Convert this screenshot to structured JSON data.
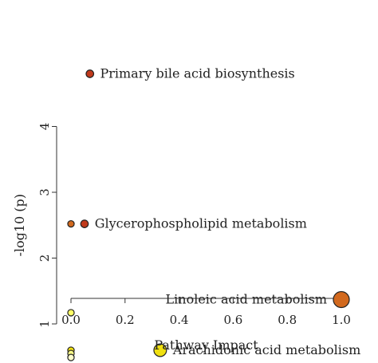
{
  "chart_data": {
    "type": "scatter",
    "title": "",
    "xlabel": "Pathway Impact",
    "ylabel": "-log10 (p)",
    "xlim": [
      0.0,
      1.0
    ],
    "ylim": [
      0.45,
      4.3
    ],
    "xticks": [
      0.0,
      0.2,
      0.4,
      0.6,
      0.8,
      1.0
    ],
    "xtick_labels": [
      "0.0",
      "0.2",
      "0.4",
      "0.6",
      "0.8",
      "1.0"
    ],
    "yticks": [
      1,
      2,
      3,
      4
    ],
    "ytick_labels": [
      "1",
      "2",
      "3",
      "4"
    ],
    "grid": false,
    "legend": "none",
    "points": [
      {
        "x": 0.07,
        "y": 4.8,
        "size": 0.25,
        "color": "#c0391b",
        "label": "Primary bile acid biosynthesis",
        "label_side": "right"
      },
      {
        "x": 0.05,
        "y": 2.52,
        "size": 0.25,
        "color": "#c0391b",
        "label": "Glycerophospholipid metabolism",
        "label_side": "right"
      },
      {
        "x": 0.0,
        "y": 2.52,
        "size": 0.15,
        "color": "#d2691e",
        "label": "",
        "label_side": "right"
      },
      {
        "x": 1.0,
        "y": 1.37,
        "size": 1.0,
        "color": "#d2691e",
        "label": "Linoleic acid metabolism",
        "label_side": "left"
      },
      {
        "x": 0.0,
        "y": 1.17,
        "size": 0.15,
        "color": "#ffff66",
        "label": "",
        "label_side": "right"
      },
      {
        "x": 0.33,
        "y": 0.6,
        "size": 0.7,
        "color": "#f0e010",
        "label": "Arachidonic acid metabolism",
        "label_side": "right"
      },
      {
        "x": 0.0,
        "y": 0.6,
        "size": 0.15,
        "color": "#f0e010",
        "label": "",
        "label_side": "right"
      },
      {
        "x": 0.0,
        "y": 0.55,
        "size": 0.15,
        "color": "#ffff88",
        "label": "",
        "label_side": "right"
      },
      {
        "x": 0.0,
        "y": 0.49,
        "size": 0.15,
        "color": "#ffffcc",
        "label": "",
        "label_side": "right"
      }
    ]
  }
}
